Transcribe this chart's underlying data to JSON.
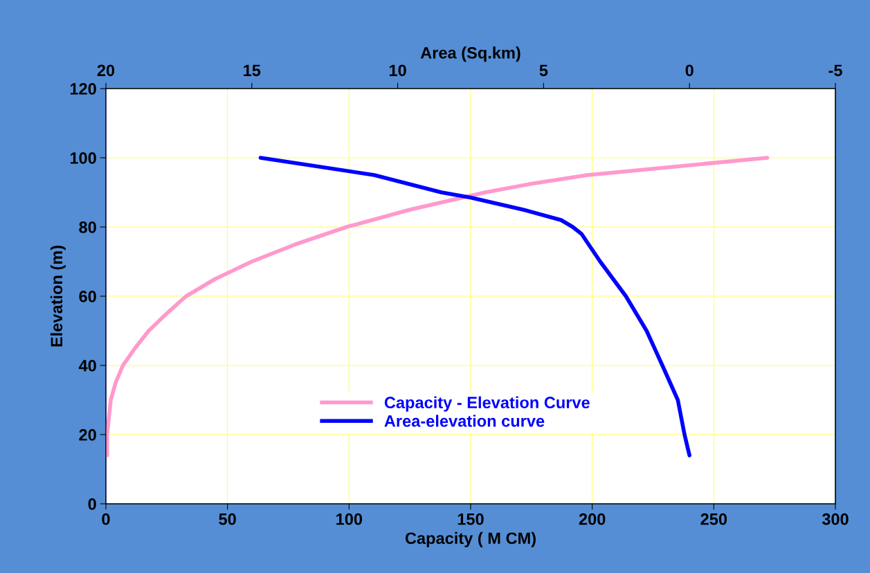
{
  "chart_data": {
    "type": "line",
    "xlabel": "Capacity ( M CM)",
    "x2label": "Area (Sq.km)",
    "ylabel": "Elevation (m)",
    "xlim": [
      0,
      300
    ],
    "xticks": [
      0,
      50,
      100,
      150,
      200,
      250,
      300
    ],
    "x2lim": [
      20,
      -5
    ],
    "x2ticks": [
      20,
      15,
      10,
      5,
      0,
      -5
    ],
    "ylim": [
      0,
      120
    ],
    "yticks": [
      0,
      20,
      40,
      60,
      80,
      100,
      120
    ],
    "grid": true,
    "legend": "bottom",
    "marker": "none",
    "line_style": "solid",
    "series": [
      {
        "name": "Capacity - Elevation Curve",
        "color": "#ff99cc",
        "x": [
          0.5,
          0.5,
          2,
          4,
          7,
          12,
          17.6,
          25,
          33,
          45,
          60,
          78,
          99,
          125,
          156,
          175,
          198,
          235,
          272
        ],
        "values": [
          14,
          20,
          30,
          35,
          40,
          45,
          50,
          55,
          60,
          65,
          70,
          75,
          80,
          85,
          90,
          92.5,
          95,
          97.5,
          100
        ]
      },
      {
        "name": "Area-elevation curve",
        "color": "#0000ff",
        "axis": "x2",
        "x": [
          0,
          0.17,
          0.4,
          0.93,
          1.47,
          2.18,
          3.06,
          3.7,
          4.0,
          4.4,
          5.7,
          7.5,
          8.5,
          10.8,
          14.7
        ],
        "values": [
          14,
          20,
          30,
          40,
          50,
          60,
          70,
          78,
          80,
          82,
          85,
          88.5,
          90,
          95,
          100
        ]
      }
    ]
  }
}
